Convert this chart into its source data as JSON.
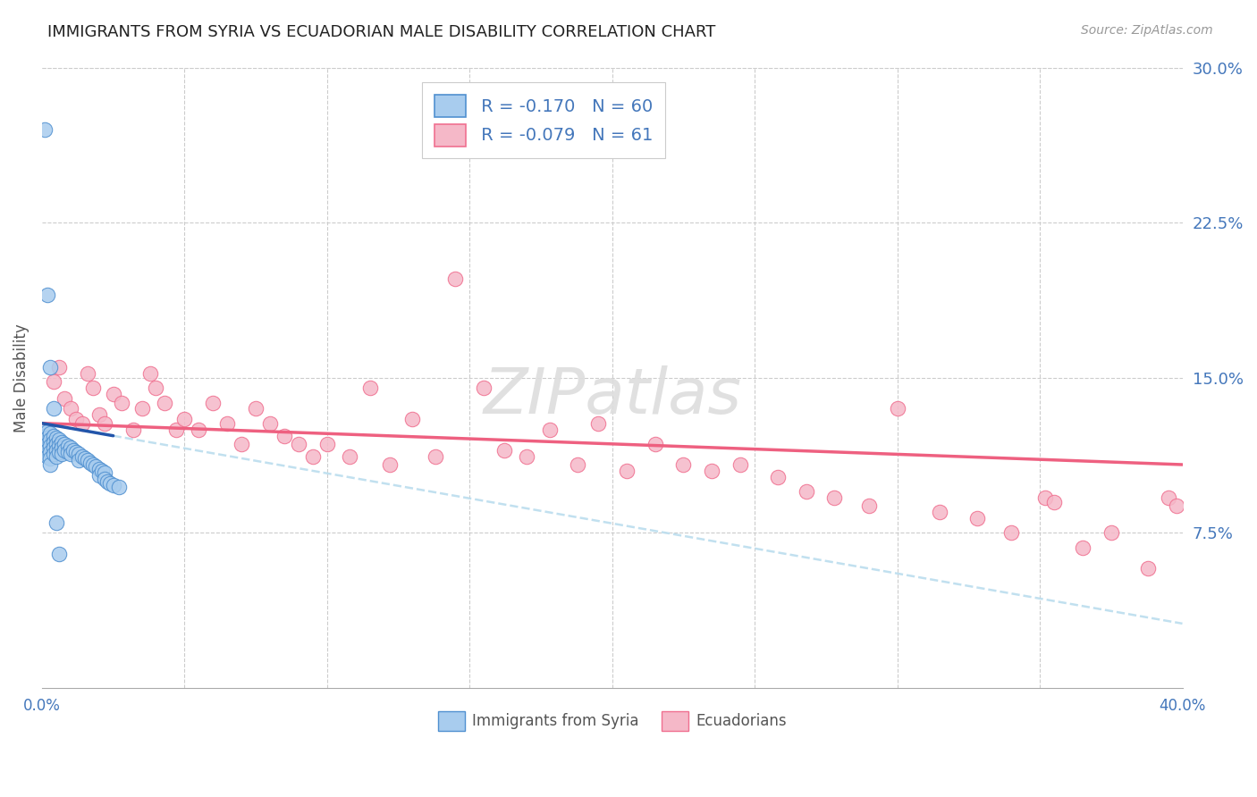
{
  "title": "IMMIGRANTS FROM SYRIA VS ECUADORIAN MALE DISABILITY CORRELATION CHART",
  "source": "Source: ZipAtlas.com",
  "ylabel": "Male Disability",
  "legend_label1": "Immigrants from Syria",
  "legend_label2": "Ecuadorians",
  "legend_r1": "R =",
  "legend_r1_val": "-0.170",
  "legend_n1": "N =",
  "legend_n1_val": "60",
  "legend_r2": "R =",
  "legend_r2_val": "-0.079",
  "legend_n2": "N =",
  "legend_n2_val": "61",
  "xmin": 0.0,
  "xmax": 0.4,
  "ymin": 0.0,
  "ymax": 0.3,
  "xticks": [
    0.0,
    0.05,
    0.1,
    0.15,
    0.2,
    0.25,
    0.3,
    0.35,
    0.4
  ],
  "yticks_right": [
    0.075,
    0.15,
    0.225,
    0.3
  ],
  "ytick_labels_right": [
    "7.5%",
    "15.0%",
    "22.5%",
    "30.0%"
  ],
  "color_syria": "#A8CCEE",
  "color_ecuador": "#F5B8C8",
  "color_edge_syria": "#5090D0",
  "color_edge_ecuador": "#F07090",
  "color_line_syria_solid": "#2255AA",
  "color_line_ecuador_solid": "#EE6080",
  "color_line_syria_dash": "#BBDDEE",
  "title_color": "#222222",
  "axis_label_color": "#555555",
  "tick_label_color": "#4477BB",
  "grid_color": "#CCCCCC",
  "background_color": "#FFFFFF",
  "syria_x": [
    0.001,
    0.001,
    0.001,
    0.001,
    0.002,
    0.002,
    0.002,
    0.002,
    0.002,
    0.003,
    0.003,
    0.003,
    0.003,
    0.003,
    0.003,
    0.004,
    0.004,
    0.004,
    0.004,
    0.005,
    0.005,
    0.005,
    0.005,
    0.006,
    0.006,
    0.006,
    0.007,
    0.007,
    0.007,
    0.008,
    0.008,
    0.009,
    0.009,
    0.01,
    0.01,
    0.011,
    0.012,
    0.013,
    0.013,
    0.014,
    0.015,
    0.016,
    0.017,
    0.018,
    0.019,
    0.02,
    0.02,
    0.021,
    0.022,
    0.022,
    0.023,
    0.024,
    0.025,
    0.027,
    0.001,
    0.002,
    0.003,
    0.004,
    0.005,
    0.006
  ],
  "syria_y": [
    0.125,
    0.122,
    0.119,
    0.116,
    0.124,
    0.121,
    0.118,
    0.115,
    0.112,
    0.123,
    0.12,
    0.117,
    0.114,
    0.111,
    0.108,
    0.122,
    0.119,
    0.116,
    0.113,
    0.121,
    0.118,
    0.115,
    0.112,
    0.12,
    0.117,
    0.114,
    0.119,
    0.116,
    0.113,
    0.118,
    0.115,
    0.117,
    0.114,
    0.116,
    0.113,
    0.115,
    0.114,
    0.113,
    0.11,
    0.112,
    0.111,
    0.11,
    0.109,
    0.108,
    0.107,
    0.106,
    0.103,
    0.105,
    0.104,
    0.101,
    0.1,
    0.099,
    0.098,
    0.097,
    0.27,
    0.19,
    0.155,
    0.135,
    0.08,
    0.065
  ],
  "ecuador_x": [
    0.004,
    0.006,
    0.008,
    0.01,
    0.012,
    0.014,
    0.016,
    0.018,
    0.02,
    0.022,
    0.025,
    0.028,
    0.032,
    0.035,
    0.038,
    0.04,
    0.043,
    0.047,
    0.05,
    0.055,
    0.06,
    0.065,
    0.07,
    0.075,
    0.08,
    0.085,
    0.09,
    0.095,
    0.1,
    0.108,
    0.115,
    0.122,
    0.13,
    0.138,
    0.145,
    0.155,
    0.162,
    0.17,
    0.178,
    0.188,
    0.195,
    0.205,
    0.215,
    0.225,
    0.235,
    0.245,
    0.258,
    0.268,
    0.278,
    0.29,
    0.3,
    0.315,
    0.328,
    0.34,
    0.352,
    0.365,
    0.375,
    0.388,
    0.395,
    0.398,
    0.355
  ],
  "ecuador_y": [
    0.148,
    0.155,
    0.14,
    0.135,
    0.13,
    0.128,
    0.152,
    0.145,
    0.132,
    0.128,
    0.142,
    0.138,
    0.125,
    0.135,
    0.152,
    0.145,
    0.138,
    0.125,
    0.13,
    0.125,
    0.138,
    0.128,
    0.118,
    0.135,
    0.128,
    0.122,
    0.118,
    0.112,
    0.118,
    0.112,
    0.145,
    0.108,
    0.13,
    0.112,
    0.198,
    0.145,
    0.115,
    0.112,
    0.125,
    0.108,
    0.128,
    0.105,
    0.118,
    0.108,
    0.105,
    0.108,
    0.102,
    0.095,
    0.092,
    0.088,
    0.135,
    0.085,
    0.082,
    0.075,
    0.092,
    0.068,
    0.075,
    0.058,
    0.092,
    0.088,
    0.09
  ],
  "syria_trend_x0": 0.0,
  "syria_trend_x1": 0.19,
  "syria_trend_y0": 0.128,
  "syria_trend_y1": 0.082,
  "ecuador_trend_x0": 0.0,
  "ecuador_trend_x1": 0.4,
  "ecuador_trend_y0": 0.128,
  "ecuador_trend_y1": 0.108
}
